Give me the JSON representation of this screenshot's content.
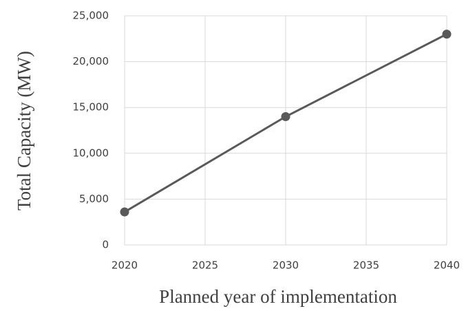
{
  "chart_data": {
    "type": "line",
    "x_label": "Planned year of implementation",
    "y_label": "Total Capacity (MW)",
    "x": [
      2020,
      2030,
      2040
    ],
    "series": [
      {
        "color": "#595959",
        "values": [
          3600,
          14000,
          23000
        ]
      }
    ],
    "xlim": [
      2020,
      2040
    ],
    "xticks": [
      2020,
      2025,
      2030,
      2035,
      2040
    ],
    "ylim": [
      0,
      25000
    ],
    "yticks": [
      0,
      {
        "value": 5000,
        "label": "5,000"
      },
      {
        "value": 10000,
        "label": "10,000"
      },
      {
        "value": 15000,
        "label": "15,000"
      },
      {
        "value": 20000,
        "label": "20,000"
      },
      {
        "value": 25000,
        "label": "25,000"
      }
    ],
    "grid": true
  }
}
